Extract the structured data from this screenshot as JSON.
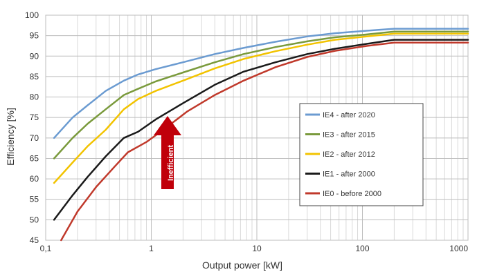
{
  "chart_data": {
    "type": "line",
    "xlabel": "Output power [kW]",
    "ylabel": "Efficiency [%]",
    "x_scale": "log",
    "xlim": [
      0.1,
      1000
    ],
    "ylim": [
      45,
      100
    ],
    "x_tick_labels": [
      "0,1",
      "1",
      "10",
      "100",
      "1000"
    ],
    "x_tick_values": [
      0.1,
      1,
      10,
      100,
      1000
    ],
    "y_ticks": [
      45,
      50,
      55,
      60,
      65,
      70,
      75,
      80,
      85,
      90,
      95,
      100
    ],
    "grid": true,
    "legend_position": "center-right",
    "series": [
      {
        "name": "IE4 - after 2020",
        "color": "#6b9bd1",
        "x": [
          0.12,
          0.18,
          0.25,
          0.37,
          0.55,
          0.75,
          1.1,
          2,
          4,
          7.5,
          15,
          30,
          55,
          110,
          200,
          1000
        ],
        "y": [
          70,
          75,
          78,
          81.5,
          84,
          85.5,
          86.8,
          88.5,
          90.5,
          92,
          93.5,
          94.8,
          95.6,
          96.2,
          96.7,
          96.7
        ]
      },
      {
        "name": "IE3 - after 2015",
        "color": "#7a9a3c",
        "x": [
          0.12,
          0.18,
          0.25,
          0.37,
          0.55,
          0.75,
          1.1,
          2,
          4,
          7.5,
          15,
          30,
          55,
          110,
          200,
          1000
        ],
        "y": [
          65,
          70,
          73.5,
          77,
          80.5,
          82,
          83.8,
          86,
          88.5,
          90.5,
          92.2,
          93.6,
          94.6,
          95.3,
          96,
          96
        ]
      },
      {
        "name": "IE2 - after 2012",
        "color": "#f2c300",
        "x": [
          0.12,
          0.18,
          0.25,
          0.37,
          0.55,
          0.75,
          1.1,
          2,
          4,
          7.5,
          15,
          30,
          55,
          110,
          200,
          1000
        ],
        "y": [
          59,
          64,
          68,
          72,
          77,
          79.5,
          81.5,
          84,
          87,
          89.3,
          91.2,
          92.8,
          94,
          94.8,
          95.5,
          95.5
        ]
      },
      {
        "name": "IE1 - after 2000",
        "color": "#1a1a1a",
        "x": [
          0.12,
          0.18,
          0.25,
          0.37,
          0.55,
          0.75,
          1.1,
          2,
          4,
          7.5,
          15,
          30,
          55,
          110,
          200,
          1000
        ],
        "y": [
          50,
          56,
          60.5,
          65.5,
          70,
          71.5,
          74.5,
          78.5,
          83,
          86.2,
          88.5,
          90.5,
          91.8,
          93,
          94,
          94
        ]
      },
      {
        "name": "IE0 - before 2000",
        "color": "#c0392b",
        "x": [
          0.14,
          0.2,
          0.3,
          0.45,
          0.6,
          0.9,
          1.3,
          2.2,
          4,
          7.5,
          15,
          30,
          55,
          110,
          200,
          1000
        ],
        "y": [
          45,
          52,
          58,
          63,
          66.5,
          69,
          72,
          76.5,
          80.5,
          84,
          87.3,
          89.8,
          91.3,
          92.5,
          93.3,
          93.3
        ]
      }
    ],
    "annotation": {
      "text": "Inefficient",
      "color": "#c0000a",
      "direction": "up"
    }
  }
}
